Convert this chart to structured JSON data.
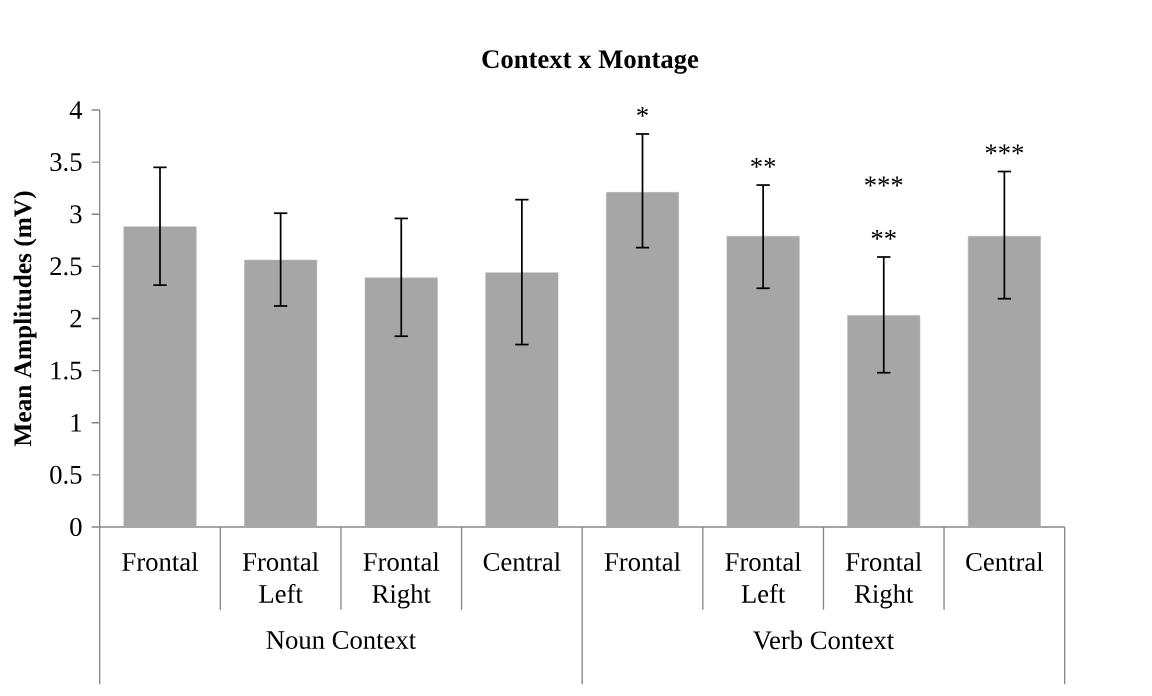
{
  "chart_data": {
    "type": "bar",
    "title": "Context x Montage",
    "ylabel": "Mean Amplitudes (mV)",
    "categories": [
      "Frontal",
      "Frontal Left",
      "Frontal Right",
      "Central",
      "Frontal",
      "Frontal Left",
      "Frontal Right",
      "Central"
    ],
    "values": [
      2.88,
      2.56,
      2.39,
      2.44,
      3.21,
      2.79,
      2.03,
      2.79
    ],
    "errors": [
      [
        2.32,
        3.45
      ],
      [
        2.12,
        3.01
      ],
      [
        1.83,
        2.96
      ],
      [
        1.75,
        3.14
      ],
      [
        2.68,
        3.77
      ],
      [
        2.29,
        3.28
      ],
      [
        1.48,
        2.59
      ],
      [
        2.19,
        3.41
      ]
    ],
    "color": "#a6a6a6",
    "ylim": [
      0,
      4
    ],
    "yticks": [
      0,
      0.5,
      1,
      1.5,
      2,
      2.5,
      3,
      3.5,
      4
    ],
    "annotations": [
      "*",
      "**",
      "***",
      "**",
      "***",
      "Noun Context",
      "Verb Context"
    ]
  }
}
